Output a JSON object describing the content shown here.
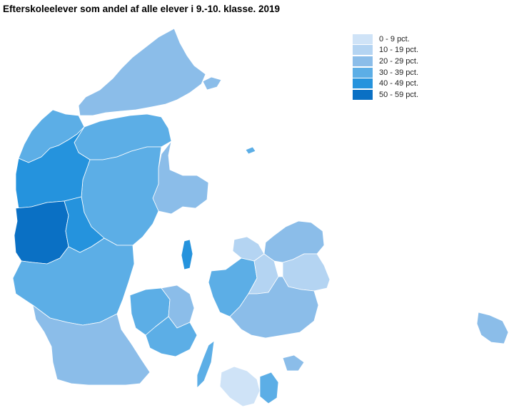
{
  "title": "Efterskoleelever som andel af alle elever i 9.-10. klasse. 2019",
  "legend": [
    {
      "label": "0 - 9 pct.",
      "color": "#cfe3f7"
    },
    {
      "label": "10 - 19 pct.",
      "color": "#b4d4f2"
    },
    {
      "label": "20 - 29 pct.",
      "color": "#8bbde9"
    },
    {
      "label": "30 - 39 pct.",
      "color": "#5caee6"
    },
    {
      "label": "40 - 49 pct.",
      "color": "#2593dd"
    },
    {
      "label": "50 - 59 pct.",
      "color": "#0a70c4"
    }
  ],
  "regions": [
    {
      "name": "north-jutland",
      "band": 2
    },
    {
      "name": "thy-mors",
      "band": 3
    },
    {
      "name": "himmerland-north",
      "band": 3
    },
    {
      "name": "central-jutland-east",
      "band": 3
    },
    {
      "name": "djursland",
      "band": 2
    },
    {
      "name": "west-jutland-north",
      "band": 4
    },
    {
      "name": "herning-area",
      "band": 4
    },
    {
      "name": "ringkobing-skjern",
      "band": 5
    },
    {
      "name": "south-jutland",
      "band": 3
    },
    {
      "name": "sonderjylland-west",
      "band": 2
    },
    {
      "name": "funen-west",
      "band": 3
    },
    {
      "name": "funen-central",
      "band": 2
    },
    {
      "name": "tasinge",
      "band": 3
    },
    {
      "name": "langeland",
      "band": 3
    },
    {
      "name": "samso",
      "band": 4
    },
    {
      "name": "zealand-west",
      "band": 3
    },
    {
      "name": "zealand-north",
      "band": 2
    },
    {
      "name": "copenhagen-area",
      "band": 1
    },
    {
      "name": "zealand-south",
      "band": 2
    },
    {
      "name": "lolland",
      "band": 0
    },
    {
      "name": "falster",
      "band": 3
    },
    {
      "name": "mon",
      "band": 2
    },
    {
      "name": "bornholm",
      "band": 2
    },
    {
      "name": "laeso",
      "band": 2
    },
    {
      "name": "anholt",
      "band": 3
    },
    {
      "name": "zealand-central",
      "band": 1
    },
    {
      "name": "odsherred",
      "band": 1
    }
  ]
}
